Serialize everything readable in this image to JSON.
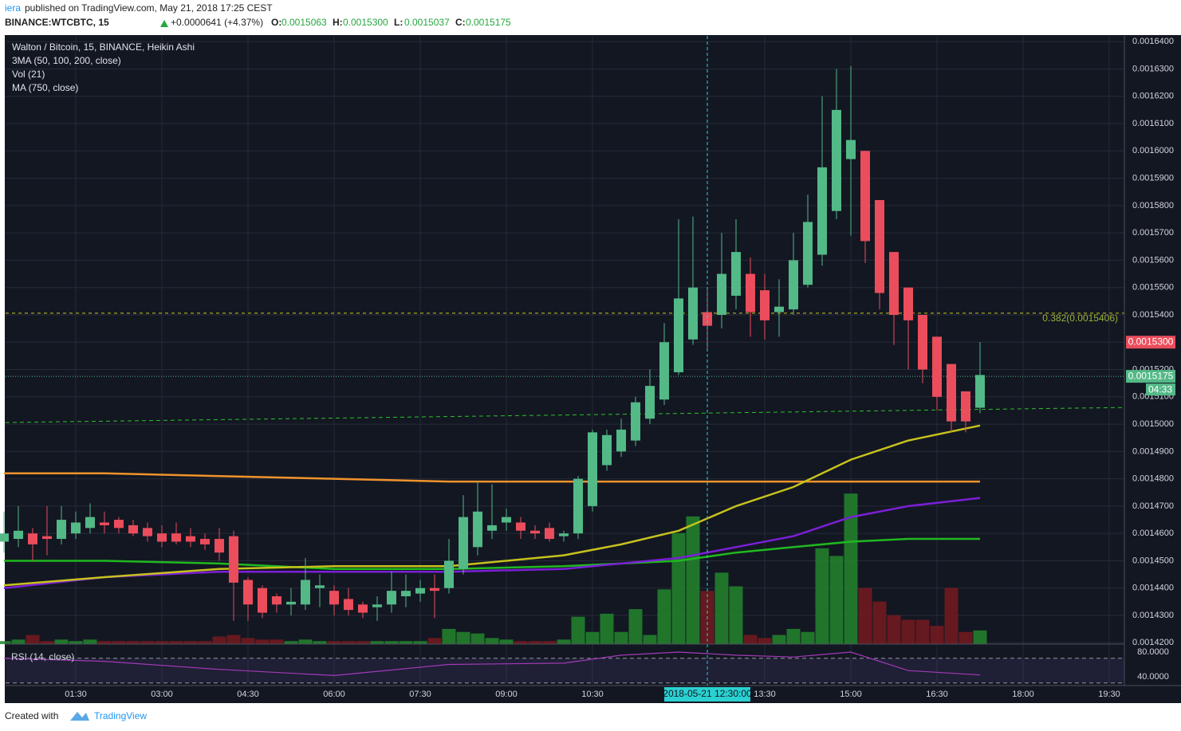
{
  "chart_data": {
    "type": "candlestick",
    "header": {
      "author": "iera",
      "published": "published on TradingView.com, May 21, 2018 17:25 CEST",
      "symbol": "BINANCE:WTCBTC, 15",
      "change": "+0.0000641 (+4.37%)",
      "ohlc": [
        {
          "label": "O:",
          "value": "0.0015063"
        },
        {
          "label": "H:",
          "value": "0.0015300"
        },
        {
          "label": "L:",
          "value": "0.0015037"
        },
        {
          "label": "C:",
          "value": "0.0015175"
        }
      ]
    },
    "title": "Walton / Bitcoin, 15, BINANCE, Heikin Ashi",
    "indicators": [
      "3MA (50, 100, 200, close)",
      "Vol (21)",
      "MA (750, close)"
    ],
    "background": "#131722",
    "grid": true,
    "up_color": "#53b987",
    "down_color": "#eb4d5c",
    "x": [
      0.25,
      0.5,
      0.75,
      1,
      1.25,
      1.5,
      1.75,
      2,
      2.25,
      2.5,
      2.75,
      3,
      3.25,
      3.5,
      3.75,
      4,
      4.25,
      4.5,
      4.75,
      5,
      5.25,
      5.5,
      5.75,
      6,
      6.25,
      6.5,
      6.75,
      7,
      7.25,
      7.5,
      7.75,
      8,
      8.25,
      8.5,
      8.75,
      9,
      9.25,
      9.5,
      9.75,
      10,
      10.25,
      10.5,
      10.75,
      11,
      11.25,
      11.5,
      11.75,
      12,
      12.25,
      12.5,
      12.75,
      13,
      13.25,
      13.5,
      13.75,
      14,
      14.25,
      14.5,
      14.75,
      15,
      15.25,
      15.5,
      15.75,
      16,
      16.25,
      16.5,
      16.75,
      17,
      17.25
    ],
    "open": [
      0.001457,
      0.001458,
      0.00146,
      0.001459,
      0.001458,
      0.00146,
      0.001462,
      0.001464,
      0.001465,
      0.001463,
      0.001462,
      0.00146,
      0.00146,
      0.001459,
      0.001458,
      0.001458,
      0.001459,
      0.001443,
      0.00144,
      0.001437,
      0.001434,
      0.001434,
      0.00144,
      0.001439,
      0.001436,
      0.001434,
      0.001433,
      0.001434,
      0.001437,
      0.001438,
      0.00144,
      0.00144,
      0.001447,
      0.001455,
      0.001461,
      0.001464,
      0.001464,
      0.001461,
      0.001462,
      0.001459,
      0.00146,
      0.00147,
      0.001485,
      0.00149,
      0.001494,
      0.001502,
      0.001509,
      0.001519,
      0.001531,
      0.001541,
      0.00154,
      0.001547,
      0.001555,
      0.001549,
      0.001541,
      0.001542,
      0.001551,
      0.001562,
      0.001578,
      0.001597,
      0.0016,
      0.001582,
      0.001563,
      0.00155,
      0.00154,
      0.001532,
      0.001522,
      0.001512,
      0.001506
    ],
    "high": [
      0.001468,
      0.00147,
      0.001462,
      0.00147,
      0.00147,
      0.001468,
      0.001471,
      0.001468,
      0.001466,
      0.001465,
      0.001464,
      0.001463,
      0.001464,
      0.001462,
      0.00146,
      0.001462,
      0.001461,
      0.001444,
      0.001441,
      0.001438,
      0.00144,
      0.001451,
      0.001445,
      0.001441,
      0.00144,
      0.001435,
      0.001437,
      0.001446,
      0.001445,
      0.001443,
      0.001445,
      0.001458,
      0.001474,
      0.001479,
      0.001478,
      0.001469,
      0.001466,
      0.001463,
      0.001464,
      0.001461,
      0.001481,
      0.001498,
      0.001498,
      0.001502,
      0.00151,
      0.00152,
      0.001537,
      0.001575,
      0.001576,
      0.00155,
      0.00157,
      0.001575,
      0.001561,
      0.001555,
      0.001553,
      0.00157,
      0.001584,
      0.00162,
      0.00163,
      0.001631,
      0.0016,
      0.001582,
      0.001563,
      0.00155,
      0.00154,
      0.001532,
      0.001522,
      0.001512,
      0.00153
    ],
    "low": [
      0.001453,
      0.001455,
      0.00145,
      0.001452,
      0.001456,
      0.001458,
      0.00146,
      0.00146,
      0.00146,
      0.001459,
      0.001457,
      0.001455,
      0.001456,
      0.001455,
      0.001454,
      0.00145,
      0.001428,
      0.001428,
      0.001429,
      0.001431,
      0.00143,
      0.001432,
      0.001433,
      0.00143,
      0.00143,
      0.001429,
      0.001428,
      0.001431,
      0.001433,
      0.001435,
      0.001429,
      0.001438,
      0.001445,
      0.001452,
      0.001458,
      0.001461,
      0.001458,
      0.001458,
      0.001457,
      0.001457,
      0.001458,
      0.001468,
      0.001483,
      0.001488,
      0.001492,
      0.0015,
      0.001507,
      0.001518,
      0.001529,
      0.001527,
      0.001535,
      0.001542,
      0.001532,
      0.001531,
      0.001532,
      0.00154,
      0.00155,
      0.001558,
      0.001575,
      0.001569,
      0.001559,
      0.001542,
      0.001529,
      0.00152,
      0.001515,
      0.001505,
      0.001497,
      0.001497,
      0.001504
    ],
    "close": [
      0.00146,
      0.001461,
      0.001456,
      0.001458,
      0.001465,
      0.001464,
      0.001466,
      0.001463,
      0.001462,
      0.00146,
      0.001459,
      0.001457,
      0.001457,
      0.001457,
      0.001456,
      0.001453,
      0.001442,
      0.001434,
      0.001431,
      0.001434,
      0.001435,
      0.001443,
      0.001441,
      0.001434,
      0.001432,
      0.001431,
      0.001434,
      0.001439,
      0.001439,
      0.00144,
      0.001439,
      0.00145,
      0.001466,
      0.001468,
      0.001463,
      0.001466,
      0.001461,
      0.00146,
      0.001458,
      0.00146,
      0.00148,
      0.001497,
      0.001496,
      0.001498,
      0.001508,
      0.001514,
      0.00153,
      0.001546,
      0.00155,
      0.001536,
      0.001555,
      0.001563,
      0.001541,
      0.001538,
      0.001543,
      0.00156,
      0.001574,
      0.001594,
      0.001615,
      0.001604,
      0.001567,
      0.001548,
      0.00154,
      0.001538,
      0.00152,
      0.00151,
      0.001501,
      0.001501,
      0.001518
    ],
    "volume": {
      "up_color": "#23862d",
      "down_color": "#761a1e",
      "ylim": [
        0,
        400
      ],
      "values": [
        2,
        3,
        6,
        2,
        3,
        2,
        3,
        2,
        2,
        2,
        2,
        2,
        2,
        2,
        2,
        5,
        6,
        4,
        3,
        3,
        2,
        3,
        2,
        2,
        2,
        2,
        2,
        2,
        2,
        2,
        4,
        10,
        8,
        7,
        4,
        3,
        2,
        2,
        2,
        3,
        18,
        8,
        20,
        8,
        23,
        6,
        36,
        73,
        84,
        35,
        47,
        38,
        6,
        4,
        6,
        10,
        8,
        63,
        58,
        99,
        37,
        28,
        19,
        16,
        16,
        12,
        37,
        8,
        9
      ]
    },
    "line_x": [
      0.25,
      2,
      4,
      6,
      8,
      10,
      11,
      12,
      13,
      14,
      15,
      16,
      17.25
    ],
    "lines": [
      {
        "color": "#f0932b",
        "values": [
          0.001482,
          0.001482,
          0.001481,
          0.00148,
          0.001479,
          0.001479,
          0.001479,
          0.001479,
          0.001479,
          0.001479,
          0.001479,
          0.001479,
          0.001479
        ]
      },
      {
        "color": "#1fb91f",
        "values": [
          0.00145,
          0.00145,
          0.001449,
          0.001447,
          0.001447,
          0.001448,
          0.001449,
          0.00145,
          0.001453,
          0.001455,
          0.001457,
          0.001458,
          0.001458
        ]
      },
      {
        "color": "#7b1fd6",
        "values": [
          0.00144,
          0.001444,
          0.001446,
          0.001446,
          0.001446,
          0.001447,
          0.001449,
          0.001451,
          0.001455,
          0.001459,
          0.001466,
          0.00147,
          0.001473
        ]
      },
      {
        "color": "#c7c21d",
        "values": [
          0.001441,
          0.001444,
          0.001447,
          0.001448,
          0.001448,
          0.001452,
          0.001456,
          0.001461,
          0.00147,
          0.001477,
          0.001487,
          0.001494,
          0.0014995
        ]
      }
    ],
    "trendline": {
      "color": "#2bc22b",
      "x": [
        0.278,
        19.764
      ],
      "values": [
        0.0015006,
        0.0015061
      ]
    },
    "fib": {
      "value": 0.0015406,
      "label": "0.382(0.0015406)",
      "color": "#c8c81e"
    },
    "high_tag": {
      "value": 0.00153,
      "label": "0.0015300"
    },
    "last_price": {
      "value": 0.0015175,
      "label": "0.0015175",
      "countdown": "04:33"
    },
    "crosshair": {
      "value": 12.5,
      "label": "2018-05-21 12:30:00"
    },
    "xlim": [
      0.278,
      19.764
    ],
    "xticks": [
      {
        "value": 1.5,
        "label": "01:30"
      },
      {
        "value": 3,
        "label": "03:00"
      },
      {
        "value": 4.5,
        "label": "04:30"
      },
      {
        "value": 6,
        "label": "06:00"
      },
      {
        "value": 7.5,
        "label": "07:30"
      },
      {
        "value": 9,
        "label": "09:00"
      },
      {
        "value": 10.5,
        "label": "10:30"
      },
      {
        "value": 13.5,
        "label": "13:30"
      },
      {
        "value": 15,
        "label": "15:00"
      },
      {
        "value": 16.5,
        "label": "16:30"
      },
      {
        "value": 18,
        "label": "18:00"
      },
      {
        "value": 19.5,
        "label": "19:30"
      }
    ],
    "ylim": [
      0.0014195,
      0.0016421
    ],
    "yticks": [
      {
        "value": 0.00142,
        "label": "0.0014200"
      },
      {
        "value": 0.00143,
        "label": "0.0014300"
      },
      {
        "value": 0.00144,
        "label": "0.0014400"
      },
      {
        "value": 0.00145,
        "label": "0.0014500"
      },
      {
        "value": 0.00146,
        "label": "0.0014600"
      },
      {
        "value": 0.00147,
        "label": "0.0014700"
      },
      {
        "value": 0.00148,
        "label": "0.0014800"
      },
      {
        "value": 0.00149,
        "label": "0.0014900"
      },
      {
        "value": 0.0015,
        "label": "0.0015000"
      },
      {
        "value": 0.00151,
        "label": "0.0015100"
      },
      {
        "value": 0.00152,
        "label": "0.0015200"
      },
      {
        "value": 0.00153,
        "label": "0.0015300"
      },
      {
        "value": 0.00154,
        "label": "0.0015400"
      },
      {
        "value": 0.00155,
        "label": "0.0015500"
      },
      {
        "value": 0.00156,
        "label": "0.0015600"
      },
      {
        "value": 0.00157,
        "label": "0.0015700"
      },
      {
        "value": 0.00158,
        "label": "0.0015800"
      },
      {
        "value": 0.00159,
        "label": "0.0015900"
      },
      {
        "value": 0.0016,
        "label": "0.0016000"
      },
      {
        "value": 0.00161,
        "label": "0.0016100"
      },
      {
        "value": 0.00162,
        "label": "0.0016200"
      },
      {
        "value": 0.00163,
        "label": "0.0016300"
      },
      {
        "value": 0.00164,
        "label": "0.0016400"
      }
    ],
    "rsi": {
      "name": "RSI (14, close)",
      "color": "#a23ab8",
      "values": [
        70,
        65,
        52,
        42,
        60,
        62,
        75,
        80,
        75,
        72,
        80,
        50,
        43
      ],
      "ylim": [
        25.8,
        92.9
      ],
      "bands": [
        70,
        30
      ],
      "yticks": [
        {
          "value": 80,
          "label": "80.0000"
        },
        {
          "value": 40,
          "label": "40.0000"
        }
      ]
    },
    "footer": {
      "created": "Created with",
      "brand": "TradingView"
    }
  }
}
